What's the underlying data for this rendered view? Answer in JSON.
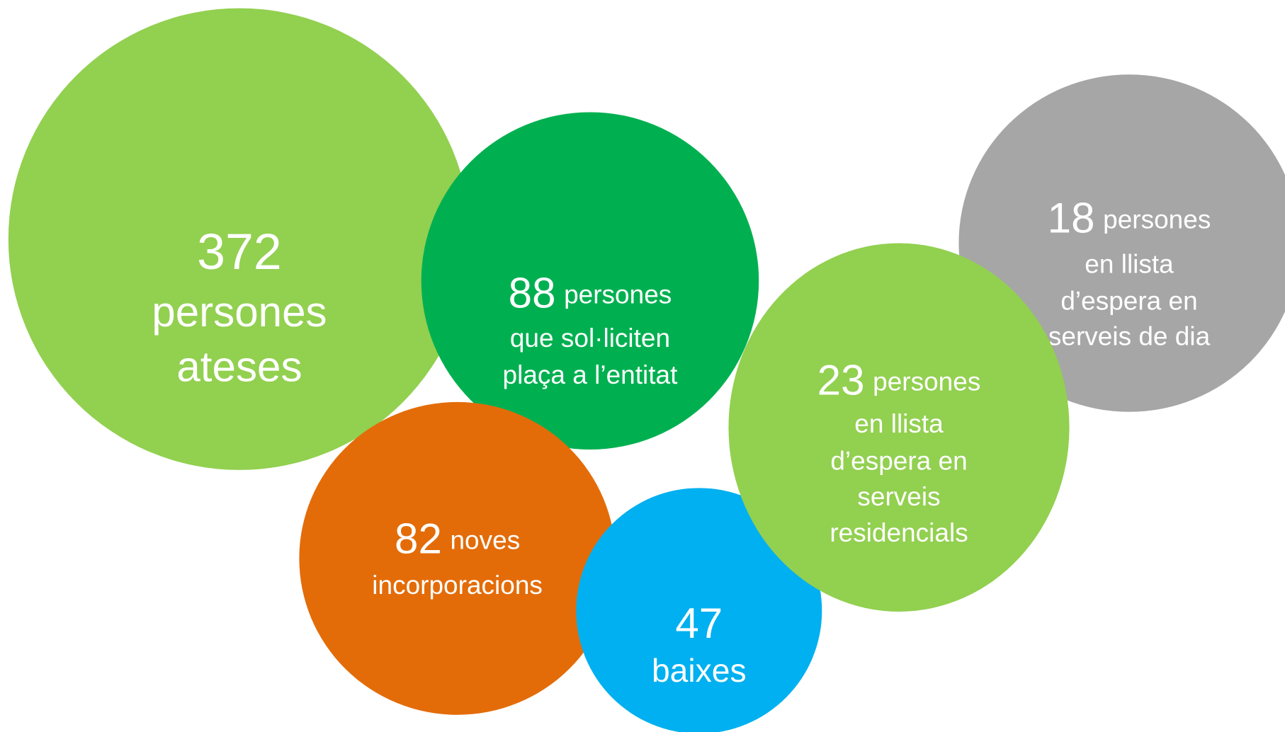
{
  "bubbles": [
    {
      "number": 372,
      "lines": [
        "persones",
        "ateses"
      ]
    },
    {
      "number": 88,
      "first": "persones",
      "lines": [
        "que sol·liciten",
        "plaça a l’entitat"
      ]
    },
    {
      "number": 82,
      "first": "noves",
      "lines": [
        "incorporacions"
      ]
    },
    {
      "number": 47,
      "lines": [
        "baixes"
      ]
    },
    {
      "number": 18,
      "first": "persones",
      "lines": [
        "en llista",
        "d’espera en",
        "serveis de dia"
      ]
    },
    {
      "number": 23,
      "first": "persones",
      "lines": [
        "en llista",
        "d’espera en",
        "serveis",
        "residencials"
      ]
    }
  ]
}
